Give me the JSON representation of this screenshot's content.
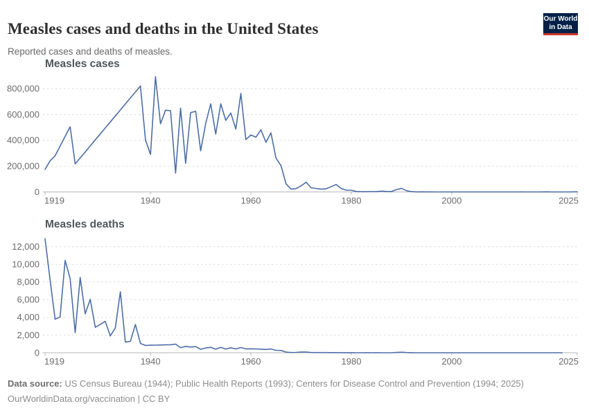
{
  "header": {
    "title": "Measles cases and deaths in the United States",
    "subtitle": "Reported cases and deaths of measles.",
    "logo": {
      "line1": "Our World",
      "line2": "in Data",
      "bg_color": "#002147",
      "accent_color": "#d0342c"
    }
  },
  "footer": {
    "source_label": "Data source:",
    "source_text": " US Census Bureau (1944); Public Health Reports (1993); Centers for Disease Control and Prevention (1994; 2025)",
    "link_line": "OurWorldinData.org/vaccination | CC BY"
  },
  "colors": {
    "line": "#4b6da6",
    "grid": "#dcdcdc",
    "axis": "#b5b5b5",
    "tick_text": "#6b6b6b"
  },
  "chart_data": [
    {
      "type": "line",
      "title": "Measles cases",
      "xlabel": "",
      "ylabel": "",
      "xlim": [
        1919,
        2025
      ],
      "ylim": [
        0,
        900000
      ],
      "yticks": [
        0,
        200000,
        400000,
        600000,
        800000
      ],
      "xticks": [
        1919,
        1940,
        1960,
        1980,
        2000,
        2025
      ],
      "grid": "horizontal-dashed",
      "legend": "none",
      "year_start": 1919,
      "year_end": 2025,
      "series": [
        {
          "name": "Measles cases",
          "color": "#4b6da6",
          "values": [
            175000,
            240000,
            280000,
            355000,
            430000,
            505000,
            217000,
            263500,
            310000,
            356500,
            403000,
            449500,
            496000,
            542500,
            589000,
            635500,
            682000,
            728500,
            775000,
            822000,
            404000,
            291000,
            894000,
            528000,
            634000,
            630000,
            146000,
            650000,
            222000,
            615000,
            625000,
            319000,
            530000,
            683000,
            449000,
            683000,
            555000,
            612000,
            487000,
            763000,
            406000,
            442000,
            424000,
            482000,
            385000,
            458000,
            262000,
            204000,
            62700,
            22200,
            25800,
            47400,
            75300,
            32300,
            26700,
            22100,
            24400,
            41100,
            57300,
            26900,
            13600,
            13500,
            3100,
            1700,
            1500,
            2600,
            2800,
            6300,
            3700,
            3400,
            18200,
            27800,
            9600,
            2200,
            312,
            963,
            309,
            508,
            138,
            100,
            100,
            86,
            116,
            44,
            56,
            37,
            66,
            55,
            43,
            140,
            71,
            63,
            220,
            55,
            187,
            667,
            188,
            86,
            120,
            375,
            1282,
            13,
            49,
            121,
            59,
            285,
            1319
          ]
        }
      ]
    },
    {
      "type": "line",
      "title": "Measles deaths",
      "xlabel": "",
      "ylabel": "",
      "xlim": [
        1919,
        2025
      ],
      "ylim": [
        0,
        13000
      ],
      "yticks": [
        0,
        2000,
        4000,
        6000,
        8000,
        10000,
        12000
      ],
      "xticks": [
        1919,
        1940,
        1960,
        1980,
        2000,
        2025
      ],
      "grid": "horizontal-dashed",
      "legend": "none",
      "year_start": 1919,
      "year_end": 2022,
      "series": [
        {
          "name": "Measles deaths",
          "color": "#4b6da6",
          "values": [
            12900,
            8300,
            3800,
            4050,
            10450,
            8400,
            2270,
            8530,
            4400,
            6050,
            2880,
            3200,
            3550,
            1900,
            2800,
            6900,
            1200,
            1300,
            3200,
            1050,
            830,
            850,
            860,
            880,
            890,
            910,
            980,
            580,
            720,
            640,
            700,
            390,
            540,
            610,
            400,
            600,
            420,
            560,
            430,
            590,
            440,
            450,
            434,
            408,
            364,
            421,
            276,
            261,
            81,
            24,
            41,
            89,
            90,
            24,
            23,
            20,
            20,
            12,
            15,
            11,
            6,
            11,
            2,
            2,
            4,
            1,
            4,
            2,
            2,
            3,
            32,
            64,
            27,
            4,
            0,
            0,
            1,
            1,
            2,
            0,
            1,
            1,
            1,
            0,
            1,
            0,
            0,
            0,
            0,
            0,
            2,
            2,
            0,
            0,
            0,
            0,
            1,
            0,
            0,
            0,
            0,
            0,
            0,
            0
          ]
        }
      ]
    }
  ]
}
